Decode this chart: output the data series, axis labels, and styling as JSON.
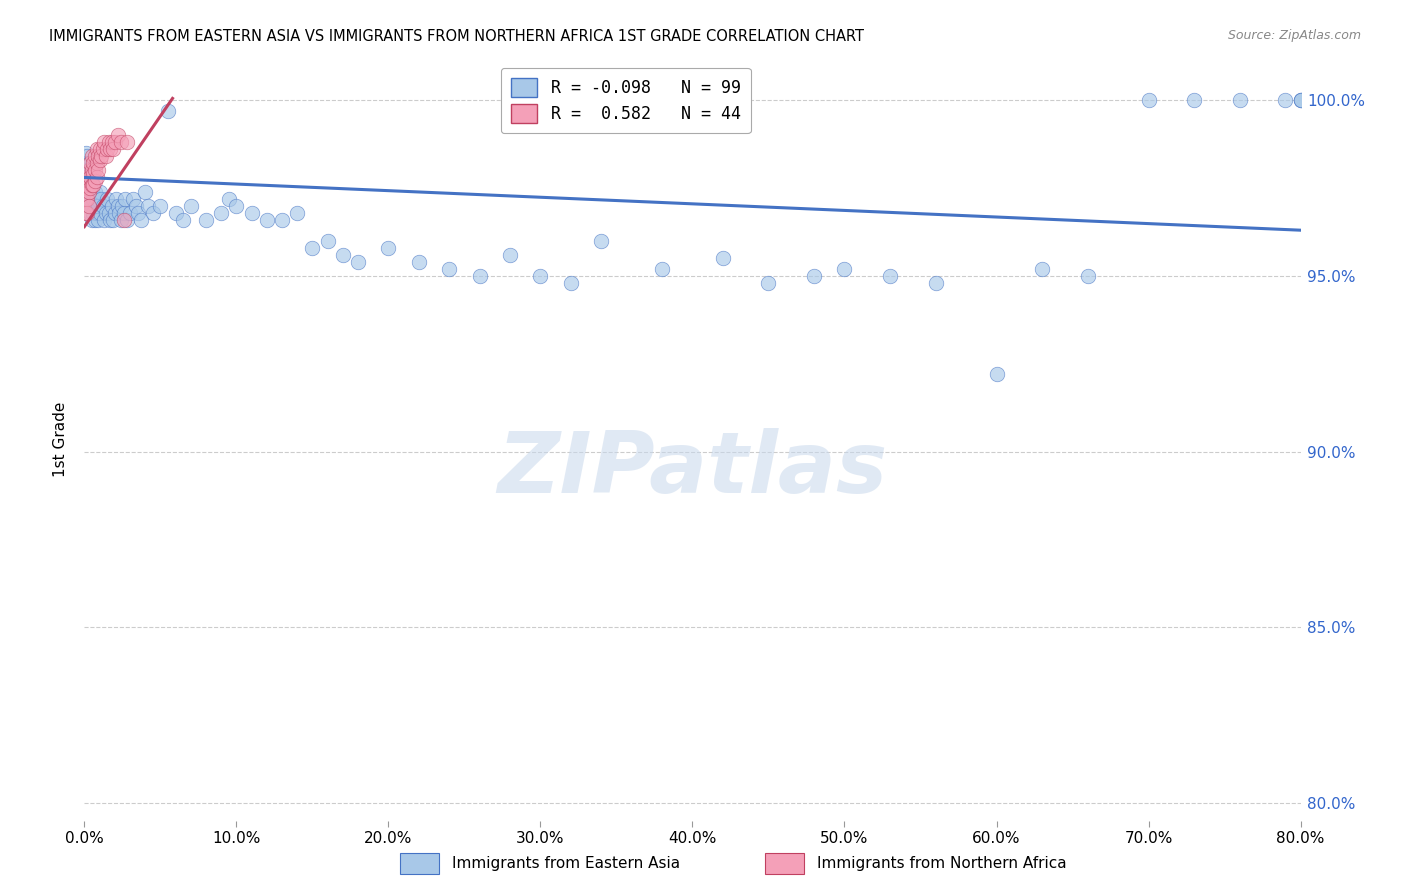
{
  "title": "IMMIGRANTS FROM EASTERN ASIA VS IMMIGRANTS FROM NORTHERN AFRICA 1ST GRADE CORRELATION CHART",
  "source": "Source: ZipAtlas.com",
  "ylabel": "1st Grade",
  "legend_label1": "Immigrants from Eastern Asia",
  "legend_label2": "Immigrants from Northern Africa",
  "R1": -0.098,
  "N1": 99,
  "R2": 0.582,
  "N2": 44,
  "color1": "#A8C8E8",
  "color2": "#F4A0B8",
  "line_color1": "#4472C4",
  "line_color2": "#C04060",
  "xmin": 0.0,
  "xmax": 0.8,
  "ymin": 0.795,
  "ymax": 1.012,
  "yticks": [
    0.8,
    0.85,
    0.9,
    0.95,
    1.0
  ],
  "xticks": [
    0.0,
    0.1,
    0.2,
    0.3,
    0.4,
    0.5,
    0.6,
    0.7,
    0.8
  ],
  "watermark": "ZIPatlas",
  "blue_line_y0": 0.978,
  "blue_line_y1": 0.963,
  "pink_line_x0": 0.0,
  "pink_line_x1": 0.058,
  "pink_line_y0": 0.964,
  "pink_line_y1": 1.0005,
  "blue_x": [
    0.001,
    0.001,
    0.001,
    0.002,
    0.002,
    0.002,
    0.002,
    0.003,
    0.003,
    0.003,
    0.003,
    0.004,
    0.004,
    0.004,
    0.004,
    0.005,
    0.005,
    0.005,
    0.005,
    0.006,
    0.006,
    0.006,
    0.007,
    0.007,
    0.007,
    0.008,
    0.008,
    0.009,
    0.009,
    0.01,
    0.01,
    0.011,
    0.012,
    0.013,
    0.014,
    0.015,
    0.016,
    0.017,
    0.018,
    0.019,
    0.02,
    0.021,
    0.022,
    0.023,
    0.024,
    0.025,
    0.026,
    0.027,
    0.028,
    0.03,
    0.032,
    0.034,
    0.035,
    0.037,
    0.04,
    0.042,
    0.045,
    0.05,
    0.055,
    0.06,
    0.065,
    0.07,
    0.08,
    0.09,
    0.095,
    0.1,
    0.11,
    0.12,
    0.13,
    0.14,
    0.15,
    0.16,
    0.17,
    0.18,
    0.2,
    0.22,
    0.24,
    0.26,
    0.28,
    0.3,
    0.32,
    0.34,
    0.38,
    0.42,
    0.45,
    0.48,
    0.5,
    0.53,
    0.56,
    0.6,
    0.63,
    0.66,
    0.7,
    0.73,
    0.76,
    0.79,
    0.8,
    0.8,
    0.8
  ],
  "blue_y": [
    0.985,
    0.982,
    0.978,
    0.984,
    0.98,
    0.975,
    0.972,
    0.982,
    0.978,
    0.975,
    0.97,
    0.98,
    0.976,
    0.972,
    0.968,
    0.978,
    0.974,
    0.97,
    0.966,
    0.976,
    0.972,
    0.968,
    0.974,
    0.97,
    0.966,
    0.972,
    0.968,
    0.97,
    0.966,
    0.974,
    0.968,
    0.972,
    0.97,
    0.966,
    0.968,
    0.972,
    0.968,
    0.966,
    0.97,
    0.966,
    0.968,
    0.972,
    0.97,
    0.968,
    0.966,
    0.97,
    0.968,
    0.972,
    0.966,
    0.968,
    0.972,
    0.97,
    0.968,
    0.966,
    0.974,
    0.97,
    0.968,
    0.97,
    0.997,
    0.968,
    0.966,
    0.97,
    0.966,
    0.968,
    0.972,
    0.97,
    0.968,
    0.966,
    0.966,
    0.968,
    0.958,
    0.96,
    0.956,
    0.954,
    0.958,
    0.954,
    0.952,
    0.95,
    0.956,
    0.95,
    0.948,
    0.96,
    0.952,
    0.955,
    0.948,
    0.95,
    0.952,
    0.95,
    0.948,
    0.922,
    0.952,
    0.95,
    1.0,
    1.0,
    1.0,
    1.0,
    1.0,
    1.0,
    1.0
  ],
  "pink_x": [
    0.001,
    0.001,
    0.001,
    0.002,
    0.002,
    0.002,
    0.002,
    0.003,
    0.003,
    0.003,
    0.003,
    0.004,
    0.004,
    0.004,
    0.005,
    0.005,
    0.005,
    0.006,
    0.006,
    0.006,
    0.007,
    0.007,
    0.007,
    0.008,
    0.008,
    0.008,
    0.009,
    0.009,
    0.01,
    0.01,
    0.011,
    0.012,
    0.013,
    0.014,
    0.015,
    0.016,
    0.017,
    0.018,
    0.019,
    0.02,
    0.022,
    0.024,
    0.026,
    0.028
  ],
  "pink_y": [
    0.975,
    0.972,
    0.968,
    0.978,
    0.975,
    0.972,
    0.968,
    0.98,
    0.977,
    0.974,
    0.97,
    0.982,
    0.978,
    0.975,
    0.984,
    0.98,
    0.976,
    0.982,
    0.979,
    0.976,
    0.984,
    0.98,
    0.977,
    0.986,
    0.982,
    0.978,
    0.984,
    0.98,
    0.986,
    0.983,
    0.984,
    0.986,
    0.988,
    0.984,
    0.986,
    0.988,
    0.986,
    0.988,
    0.986,
    0.988,
    0.99,
    0.988,
    0.966,
    0.988
  ]
}
